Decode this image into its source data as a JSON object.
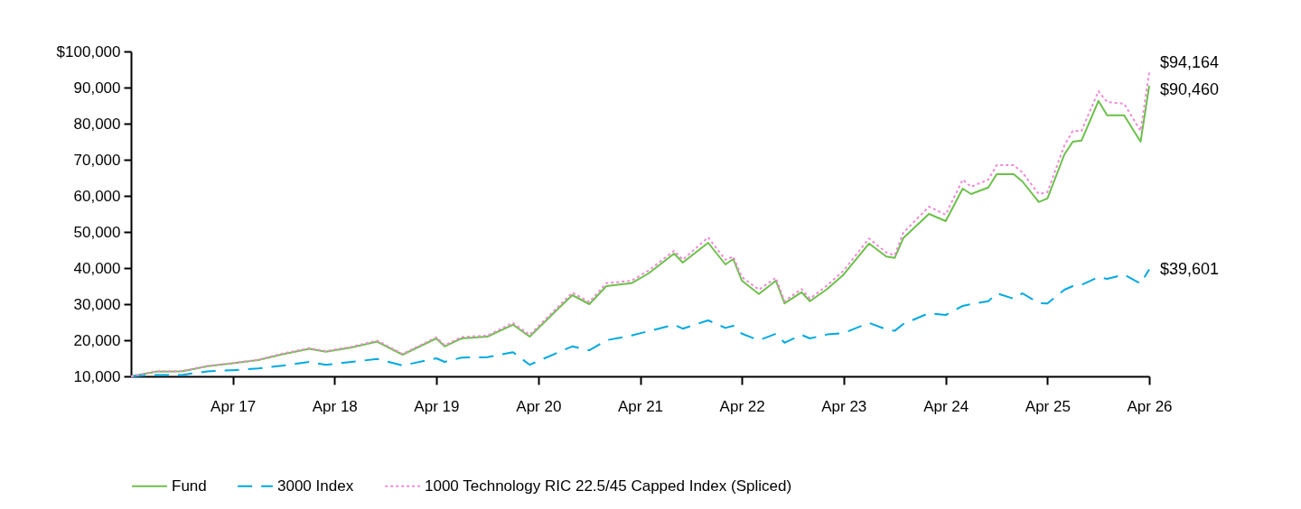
{
  "chart_data": {
    "type": "line",
    "x": [
      "2016-04",
      "2016-07",
      "2016-10",
      "2017-01",
      "2017-04",
      "2017-07",
      "2017-10",
      "2018-01",
      "2018-03",
      "2018-06",
      "2018-09",
      "2018-12",
      "2019-04",
      "2019-05",
      "2019-07",
      "2019-10",
      "2020-01",
      "2020-03",
      "2020-06",
      "2020-08",
      "2020-10",
      "2020-12",
      "2021-03",
      "2021-05",
      "2021-08",
      "2021-09",
      "2021-12",
      "2022-02",
      "2022-03",
      "2022-04",
      "2022-06",
      "2022-08",
      "2022-09",
      "2022-11",
      "2022-12",
      "2023-02",
      "2023-04",
      "2023-07",
      "2023-09",
      "2023-10",
      "2023-11",
      "2024-02",
      "2024-04",
      "2024-06",
      "2024-07",
      "2024-09",
      "2024-10",
      "2024-12",
      "2025-01",
      "2025-03",
      "2025-04",
      "2025-06",
      "2025-07",
      "2025-08",
      "2025-10",
      "2025-11",
      "2026-01",
      "2026-03",
      "2026-04"
    ],
    "series": [
      {
        "name": "Fund",
        "color": "#6cc04a",
        "line_style": "solid",
        "values": [
          10000,
          11300,
          11400,
          12800,
          13600,
          14500,
          16200,
          17600,
          16800,
          18000,
          19600,
          16000,
          20500,
          18300,
          20500,
          21000,
          24300,
          21000,
          28000,
          32500,
          30000,
          35000,
          35800,
          38500,
          44000,
          41500,
          47000,
          41000,
          42500,
          36500,
          32800,
          36500,
          30200,
          33300,
          30800,
          34200,
          38200,
          46800,
          43200,
          42800,
          48300,
          55000,
          53000,
          62000,
          60500,
          62300,
          66000,
          66000,
          64000,
          58300,
          59300,
          71500,
          75000,
          75300,
          86300,
          82300,
          82300,
          75000,
          90460
        ],
        "value_labels": [
          null,
          null,
          null,
          null,
          null,
          null,
          null,
          null,
          null,
          null,
          null,
          null,
          null,
          null,
          null,
          null,
          null,
          null,
          null,
          null,
          null,
          null,
          null,
          null,
          null,
          null,
          null,
          null,
          null,
          null,
          null,
          null,
          null,
          null,
          null,
          null,
          null,
          null,
          null,
          null,
          null,
          null,
          null,
          null,
          null,
          null,
          null,
          null,
          null,
          null,
          null,
          null,
          null,
          null,
          null,
          null,
          null,
          null,
          "$90,460"
        ]
      },
      {
        "name": "3000 Index",
        "color": "#00a9e0",
        "line_style": "dashed",
        "values": [
          10000,
          10400,
          10400,
          11400,
          11700,
          12200,
          13000,
          14000,
          13200,
          14000,
          14800,
          13000,
          15000,
          14000,
          15200,
          15300,
          16700,
          13200,
          16300,
          18300,
          17200,
          20000,
          21300,
          22500,
          24300,
          23200,
          25500,
          23400,
          24000,
          21800,
          20000,
          21800,
          19300,
          21500,
          20500,
          21600,
          22000,
          24800,
          23000,
          22600,
          24500,
          27500,
          27000,
          29500,
          30000,
          30800,
          33000,
          31500,
          33000,
          30300,
          30200,
          34000,
          35000,
          35300,
          37500,
          37000,
          38200,
          35700,
          39601
        ],
        "value_labels": [
          null,
          null,
          null,
          null,
          null,
          null,
          null,
          null,
          null,
          null,
          null,
          null,
          null,
          null,
          null,
          null,
          null,
          null,
          null,
          null,
          null,
          null,
          null,
          null,
          null,
          null,
          null,
          null,
          null,
          null,
          null,
          null,
          null,
          null,
          null,
          null,
          null,
          null,
          null,
          null,
          null,
          null,
          null,
          null,
          null,
          null,
          null,
          null,
          null,
          null,
          null,
          null,
          null,
          null,
          null,
          null,
          null,
          null,
          "$39,601"
        ]
      },
      {
        "name": "1000 Technology RIC 22.5/45 Capped Index (Spliced)",
        "color": "#f08ad8",
        "line_style": "dotted",
        "values": [
          10000,
          11400,
          11500,
          12900,
          13700,
          14600,
          16400,
          17800,
          17000,
          18200,
          19900,
          16200,
          20800,
          18600,
          20900,
          21300,
          24800,
          21500,
          28500,
          33200,
          30600,
          35800,
          36500,
          39300,
          44800,
          42300,
          48500,
          42300,
          43200,
          37500,
          34000,
          37300,
          30800,
          34200,
          31500,
          35200,
          39300,
          48200,
          44300,
          43500,
          49800,
          57000,
          54800,
          64500,
          62500,
          64500,
          68500,
          68500,
          66500,
          60500,
          61000,
          74000,
          78000,
          78000,
          89000,
          86000,
          85500,
          78000,
          94164
        ],
        "value_labels": [
          null,
          null,
          null,
          null,
          null,
          null,
          null,
          null,
          null,
          null,
          null,
          null,
          null,
          null,
          null,
          null,
          null,
          null,
          null,
          null,
          null,
          null,
          null,
          null,
          null,
          null,
          null,
          null,
          null,
          null,
          null,
          null,
          null,
          null,
          null,
          null,
          null,
          null,
          null,
          null,
          null,
          null,
          null,
          null,
          null,
          null,
          null,
          null,
          null,
          null,
          null,
          null,
          null,
          null,
          null,
          null,
          null,
          null,
          "$94,164"
        ]
      }
    ],
    "xlim": [
      "2016-04",
      "2026-04"
    ],
    "xticks": [
      {
        "value": "2017-04",
        "label": "Apr 17"
      },
      {
        "value": "2018-04",
        "label": "Apr 18"
      },
      {
        "value": "2019-04",
        "label": "Apr 19"
      },
      {
        "value": "2020-04",
        "label": "Apr 20"
      },
      {
        "value": "2021-04",
        "label": "Apr 21"
      },
      {
        "value": "2022-04",
        "label": "Apr 22"
      },
      {
        "value": "2023-04",
        "label": "Apr 23"
      },
      {
        "value": "2024-04",
        "label": "Apr 24"
      },
      {
        "value": "2025-04",
        "label": "Apr 25"
      },
      {
        "value": "2026-04",
        "label": "Apr 26"
      }
    ],
    "ylim": [
      10000,
      100000
    ],
    "yticks": [
      {
        "value": 10000,
        "label": "10,000"
      },
      {
        "value": 20000,
        "label": "20,000"
      },
      {
        "value": 30000,
        "label": "30,000"
      },
      {
        "value": 40000,
        "label": "40,000"
      },
      {
        "value": 50000,
        "label": "50,000"
      },
      {
        "value": 60000,
        "label": "60,000"
      },
      {
        "value": 70000,
        "label": "70,000"
      },
      {
        "value": 80000,
        "label": "80,000"
      },
      {
        "value": 90000,
        "label": "90,000"
      },
      {
        "value": 100000,
        "label": "$100,000"
      }
    ],
    "grid": false,
    "legend": "bottom"
  }
}
